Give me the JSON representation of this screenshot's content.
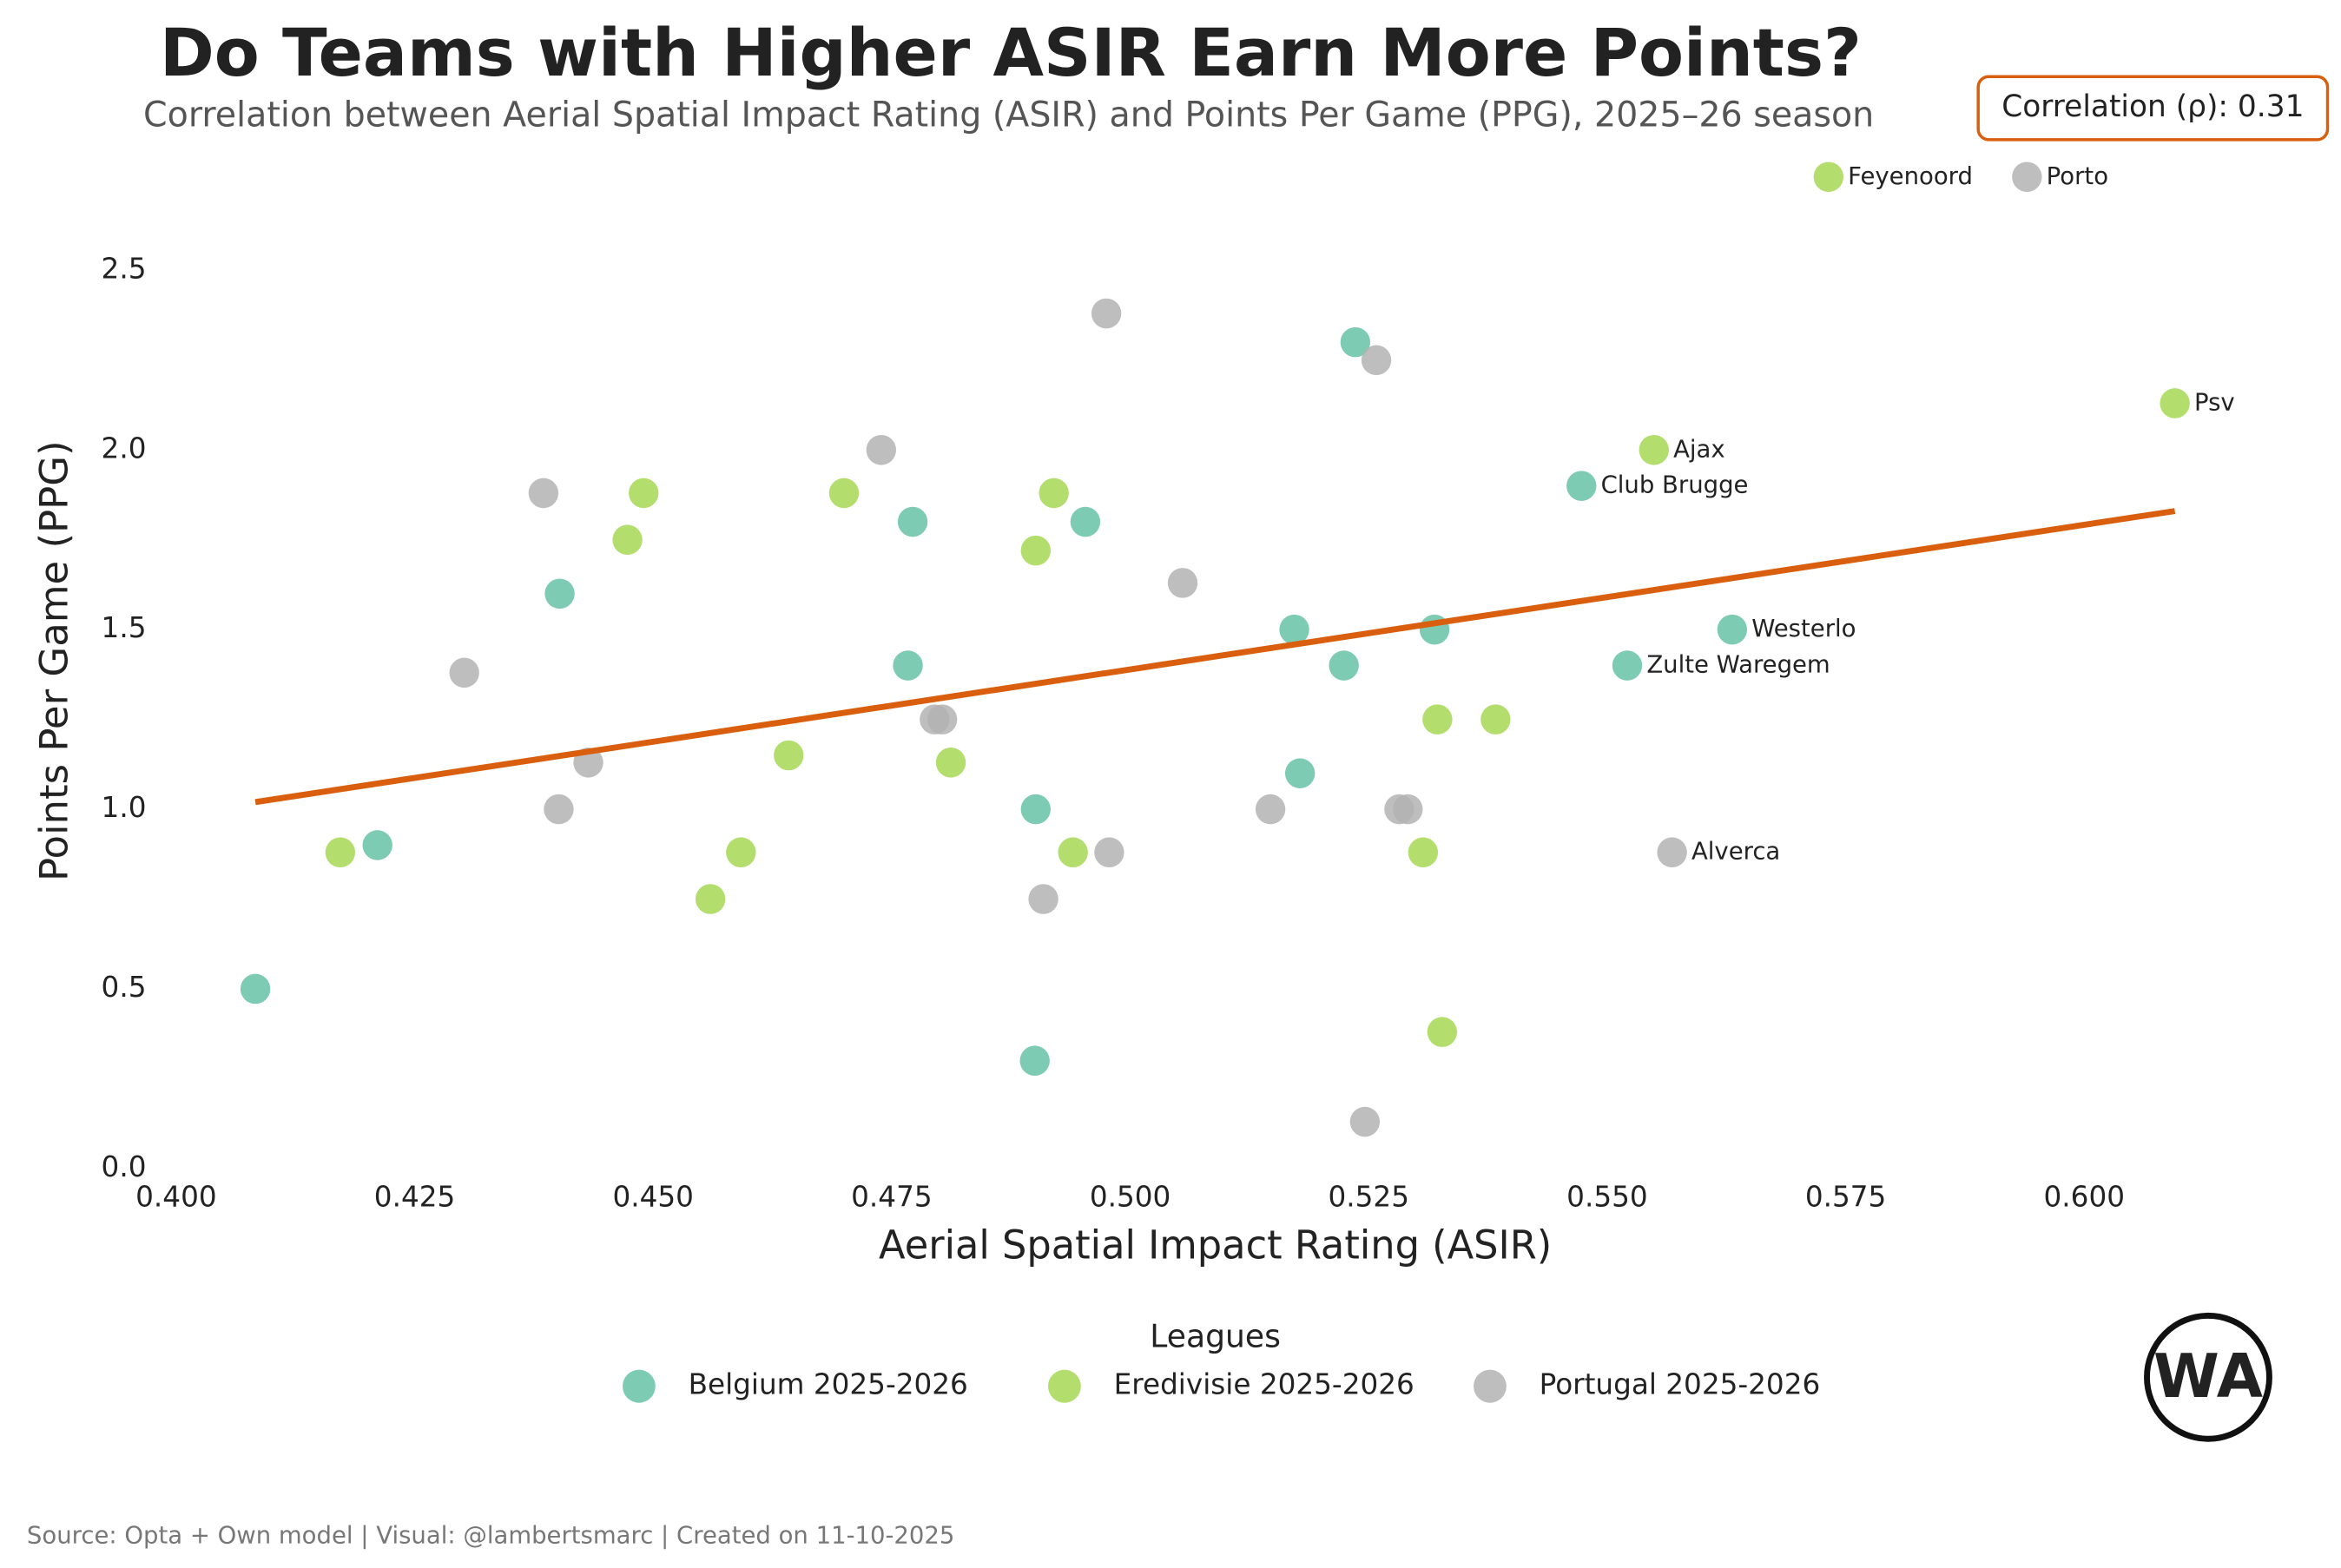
{
  "chart_data": {
    "type": "scatter",
    "title": "Do Teams with Higher ASIR Earn More Points?",
    "subtitle": "Correlation between Aerial Spatial Impact Rating (ASIR) and Points Per Game (PPG), 2025–26 season",
    "annotation": "Correlation (ρ): 0.31",
    "x_label": "Aerial Spatial Impact Rating (ASIR)",
    "y_label": "Points Per Game (PPG)",
    "legend_title": "Leagues",
    "legend_position": "bottom",
    "source": "Source: Opta + Own model | Visual: @lambertsmarc | Created on 11-10-2025",
    "logo": "WA",
    "xlim": [
      0.4,
      0.615
    ],
    "ylim": [
      0,
      2.8
    ],
    "xticks": [
      {
        "value": 0.4,
        "label": "0.400"
      },
      {
        "value": 0.425,
        "label": "0.425"
      },
      {
        "value": 0.45,
        "label": "0.450"
      },
      {
        "value": 0.475,
        "label": "0.475"
      },
      {
        "value": 0.5,
        "label": "0.500"
      },
      {
        "value": 0.525,
        "label": "0.525"
      },
      {
        "value": 0.55,
        "label": "0.550"
      },
      {
        "value": 0.575,
        "label": "0.575"
      },
      {
        "value": 0.6,
        "label": "0.600"
      }
    ],
    "yticks": [
      {
        "value": 0,
        "label": "0.0"
      },
      0.5,
      {
        "value": 1,
        "label": "1.0"
      },
      1.5,
      {
        "value": 2,
        "label": "2.0"
      },
      2.5
    ],
    "grid": false,
    "series": [
      {
        "name": "Belgium 2025-2026",
        "color": "#66c2a5",
        "x": [
          0.4083,
          0.4211,
          0.4402,
          0.4767,
          0.4772,
          0.4901,
          0.49,
          0.4953,
          0.5172,
          0.5178,
          0.5224,
          0.5236,
          0.5319,
          0.5473,
          0.5521,
          0.5631
        ],
        "values": [
          0.5,
          0.9,
          1.6,
          1.4,
          1.8,
          1.0,
          0.3,
          1.8,
          1.5,
          1.1,
          1.4,
          2.3,
          1.5,
          1.9,
          1.4,
          1.5
        ],
        "point_labels": [
          null,
          null,
          null,
          null,
          null,
          null,
          null,
          null,
          null,
          null,
          null,
          null,
          null,
          "Club Brugge",
          "Zulte Waregem",
          "Westerlo"
        ]
      },
      {
        "name": "Eredivisie 2025-2026",
        "color": "#a6d854",
        "x": [
          0.4172,
          0.4473,
          0.449,
          0.456,
          0.4592,
          0.4642,
          0.47,
          0.4812,
          0.4901,
          0.492,
          0.494,
          0.5307,
          0.5322,
          0.5327,
          0.5383,
          0.5549,
          0.5732,
          0.6095
        ],
        "values": [
          0.88,
          1.75,
          1.88,
          0.75,
          0.88,
          1.15,
          1.88,
          1.13,
          1.72,
          1.88,
          0.88,
          0.88,
          1.25,
          0.38,
          1.25,
          2.0,
          2.76,
          2.13
        ],
        "point_labels": [
          null,
          null,
          null,
          null,
          null,
          null,
          null,
          null,
          null,
          null,
          null,
          null,
          null,
          null,
          null,
          "Ajax",
          "Feyenoord",
          "Psv"
        ]
      },
      {
        "name": "Portugal 2025-2026",
        "color": "#b3b3b3",
        "x": [
          0.4302,
          0.4385,
          0.4401,
          0.4432,
          0.4739,
          0.4795,
          0.4803,
          0.4909,
          0.4975,
          0.4978,
          0.5055,
          0.5147,
          0.5246,
          0.5258,
          0.5282,
          0.5291,
          0.5568,
          0.594
        ],
        "values": [
          1.38,
          1.88,
          1.0,
          1.13,
          2.0,
          1.25,
          1.25,
          0.75,
          2.38,
          0.88,
          1.63,
          1.0,
          0.13,
          2.25,
          1.0,
          1.0,
          0.88,
          2.76
        ],
        "point_labels": [
          null,
          null,
          null,
          null,
          null,
          null,
          null,
          null,
          null,
          null,
          null,
          null,
          null,
          null,
          null,
          null,
          "Alverca",
          "Porto"
        ]
      }
    ],
    "trend_line": {
      "x": [
        0.4083,
        0.6095
      ],
      "values": [
        1.02,
        1.83
      ],
      "color": "#d95f0e"
    }
  }
}
